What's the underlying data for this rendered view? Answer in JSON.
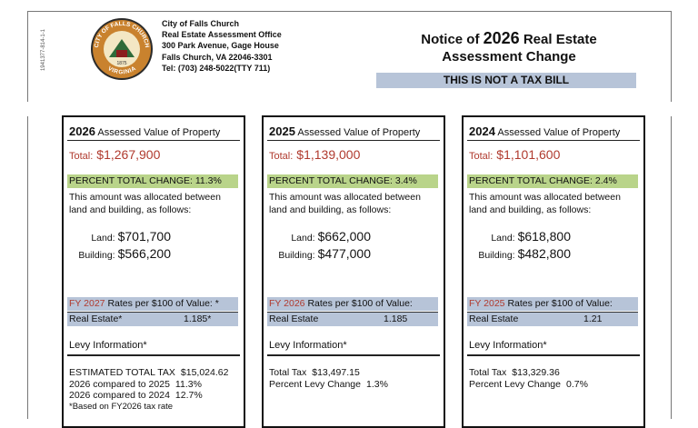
{
  "side_code": "1941377-814-1-1",
  "header": {
    "seal": {
      "top": "CITY OF FALLS CHURCH",
      "bottom": "VIRGINIA",
      "year": "1875"
    },
    "office_lines": [
      "City of Falls Church",
      "Real Estate Assessment Office",
      "300 Park Avenue, Gage House",
      "Falls Church, VA 22046-3301",
      "Tel: (703) 248-5022(TTY 711)"
    ],
    "title": {
      "prefix": "Notice of",
      "year": "2026",
      "suffix": "Real Estate",
      "line2": "Assessment Change"
    },
    "banner": "THIS IS NOT A TAX BILL"
  },
  "panels": [
    {
      "year": "2026",
      "heading": "Assessed Value of Property",
      "total_label": "Total:",
      "total": "$1,267,900",
      "change": "PERCENT TOTAL CHANGE: 11.3%",
      "allocation": [
        "This amount was allocated between",
        "land and building, as follows:"
      ],
      "land_label": "Land:",
      "land": "$701,700",
      "building_label": "Building:",
      "building": "$566,200",
      "rates_fy": "FY 2027",
      "rates_text": "Rates per $100 of Value: *",
      "re_label": "Real Estate*",
      "re_rate": "1.185*",
      "levy_heading": "Levy Information*",
      "levy_lines": [
        {
          "label": "ESTIMATED TOTAL TAX",
          "value": "$15,024.62"
        },
        {
          "label": "2026 compared to 2025",
          "value": "11.3%"
        },
        {
          "label": "2026 compared to 2024",
          "value": "12.7%"
        }
      ],
      "note": "*Based on FY2026 tax rate"
    },
    {
      "year": "2025",
      "heading": "Assessed Value of Property",
      "total_label": "Total:",
      "total": "$1,139,000",
      "change": "PERCENT TOTAL CHANGE: 3.4%",
      "allocation": [
        "This amount was allocated between",
        "land and building, as follows:"
      ],
      "land_label": "Land:",
      "land": "$662,000",
      "building_label": "Building:",
      "building": "$477,000",
      "rates_fy": "FY 2026",
      "rates_text": "Rates per $100 of Value:",
      "re_label": "Real Estate",
      "re_rate": "1.185",
      "levy_heading": "Levy Information*",
      "levy_lines": [
        {
          "label": "Total Tax",
          "value": "$13,497.15"
        },
        {
          "label": "Percent Levy Change",
          "value": "1.3%"
        }
      ]
    },
    {
      "year": "2024",
      "heading": "Assessed Value of Property",
      "total_label": "Total:",
      "total": "$1,101,600",
      "change": "PERCENT TOTAL CHANGE: 2.4%",
      "allocation": [
        "This amount was allocated between",
        "land and building, as follows:"
      ],
      "land_label": "Land:",
      "land": "$618,800",
      "building_label": "Building:",
      "building": "$482,800",
      "rates_fy": "FY 2025",
      "rates_text": "Rates per $100 of Value:",
      "re_label": "Real Estate",
      "re_rate": "1.21",
      "levy_heading": "Levy Information*",
      "levy_lines": [
        {
          "label": "Total Tax",
          "value": "$13,329.36"
        },
        {
          "label": "Percent Levy Change",
          "value": "0.7%"
        }
      ]
    }
  ]
}
